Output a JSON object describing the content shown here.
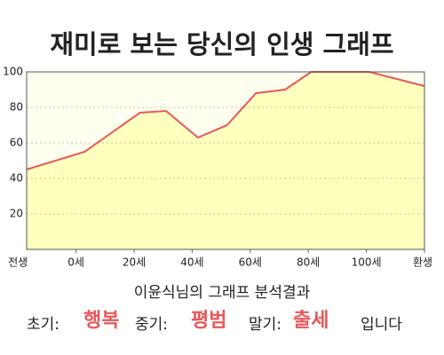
{
  "chart_data": {
    "type": "line",
    "title": "재미로 보는 당신의 인생 그래프",
    "x": [
      -17,
      3,
      22,
      31,
      42,
      52,
      62,
      72,
      81,
      101,
      120
    ],
    "values": [
      45,
      55,
      77,
      78,
      63,
      70,
      88,
      90,
      100,
      100,
      92
    ],
    "color": "#e8585a",
    "fill": "#ffffbe",
    "xlim": [
      -17,
      120
    ],
    "xticks": [
      {
        "value": -20,
        "label": "전생"
      },
      {
        "value": 0,
        "label": "0세"
      },
      {
        "value": 20,
        "label": "20세"
      },
      {
        "value": 40,
        "label": "40세"
      },
      {
        "value": 60,
        "label": "60세"
      },
      {
        "value": 80,
        "label": "80세"
      },
      {
        "value": 100,
        "label": "100세"
      },
      {
        "value": 120,
        "label": "환생"
      }
    ],
    "ylim": [
      0,
      100
    ],
    "yticks": [
      20,
      40,
      60,
      80,
      100
    ],
    "grid": true
  },
  "summary": {
    "heading": "이윤식님의 그래프 분석결과",
    "early_label": "초기:",
    "early": "행복",
    "middle_label": "중기:",
    "middle": "평범",
    "late_label": "말기:",
    "late": "출세",
    "ending": "입니다"
  }
}
